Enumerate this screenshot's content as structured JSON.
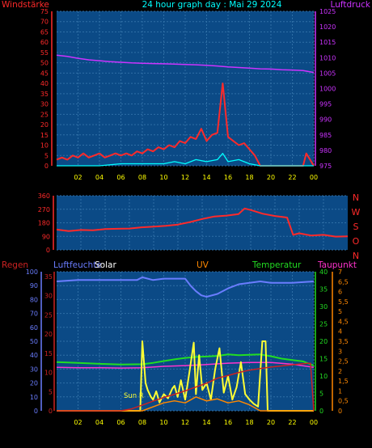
{
  "colors": {
    "background": "#000000",
    "plot_bg": "#0b4a86",
    "grid": "#2f6fa6",
    "wind": "#ff2a2a",
    "gust": "#00ffff",
    "pressure": "#cc33ff",
    "direction": "#ff2a2a",
    "humidity": "#6a7dff",
    "solar": "#ffff33",
    "uv": "#ff8800",
    "temperature": "#22dd22",
    "dewpoint": "#ff33cc",
    "rain": "#cc2222",
    "title": "#00ffff"
  },
  "chart_data": [
    {
      "type": "line",
      "title": "24 hour graph day : Mai 29 2024",
      "ylabel_left": "Windstärke",
      "ylabel_right": "Luftdruck",
      "x_ticks": [
        "02",
        "04",
        "06",
        "08",
        "10",
        "12",
        "14",
        "16",
        "18",
        "20",
        "22",
        "00"
      ],
      "xlim_hours": [
        0,
        24
      ],
      "ylim_left": [
        0,
        75
      ],
      "y_ticks_left": [
        "0",
        "5",
        "10",
        "15",
        "20",
        "25",
        "30",
        "35",
        "40",
        "45",
        "50",
        "55",
        "60",
        "65",
        "70",
        "75"
      ],
      "ylim_right": [
        975,
        1025
      ],
      "y_ticks_right": [
        "975",
        "980",
        "985",
        "990",
        "995",
        "1000",
        "1005",
        "1010",
        "1015",
        "1020",
        "1025"
      ],
      "series": [
        {
          "role": "wind_speed",
          "axis": "left",
          "x": [
            0.0,
            0.5,
            1.0,
            1.5,
            2.0,
            2.5,
            3.0,
            3.5,
            4.0,
            4.5,
            5.0,
            5.5,
            6.0,
            6.5,
            7.0,
            7.5,
            8.0,
            8.5,
            9.0,
            9.5,
            10.0,
            10.5,
            11.0,
            11.5,
            12.0,
            12.5,
            13.0,
            13.5,
            14.0,
            14.5,
            15.0,
            15.5,
            16.0,
            16.5,
            17.0,
            17.5,
            18.0,
            18.5,
            19.0,
            20.0,
            21.0,
            22.0,
            23.0,
            23.3,
            24.0
          ],
          "y": [
            3,
            4,
            3,
            5,
            4,
            6,
            4,
            5,
            6,
            4,
            5,
            6,
            5,
            6,
            5,
            7,
            6,
            8,
            7,
            9,
            8,
            10,
            9,
            12,
            11,
            14,
            13,
            18,
            12,
            15,
            16,
            40,
            14,
            12,
            10,
            11,
            8,
            5,
            0,
            0,
            0,
            0,
            0,
            6,
            0
          ]
        },
        {
          "role": "wind_gust",
          "axis": "left",
          "x": [
            0,
            2,
            4,
            6,
            8,
            10,
            11,
            12,
            13,
            14,
            15,
            15.5,
            16,
            17,
            18,
            19,
            24
          ],
          "y": [
            0,
            0,
            0,
            1,
            1,
            1,
            2,
            1,
            3,
            2,
            3,
            6,
            2,
            3,
            1,
            0,
            0
          ]
        },
        {
          "role": "pressure",
          "axis": "right",
          "x": [
            0,
            1,
            2,
            3,
            4,
            5,
            6,
            7,
            8,
            9,
            10,
            11,
            12,
            13,
            14,
            15,
            16,
            17,
            18,
            19,
            20,
            21,
            22,
            23,
            24
          ],
          "y": [
            1010.8,
            1010.4,
            1009.8,
            1009.3,
            1009.0,
            1008.7,
            1008.5,
            1008.3,
            1008.2,
            1008.1,
            1008.0,
            1007.9,
            1007.8,
            1007.7,
            1007.5,
            1007.3,
            1007.0,
            1006.8,
            1006.6,
            1006.4,
            1006.3,
            1006.1,
            1006.0,
            1005.8,
            1005.2
          ]
        }
      ]
    },
    {
      "type": "line",
      "ylabel_right": [
        "N",
        "W",
        "S",
        "O",
        "N"
      ],
      "x_ticks": [],
      "xlim_hours": [
        0,
        24
      ],
      "ylim_left": [
        0,
        360
      ],
      "y_ticks_left": [
        "0",
        "90",
        "180",
        "270",
        "360"
      ],
      "series": [
        {
          "role": "wind_direction",
          "x": [
            0,
            1,
            2,
            3,
            4,
            5,
            6,
            7,
            8,
            9,
            10,
            11,
            12,
            13,
            14,
            15,
            15.5,
            16,
            17,
            18,
            19,
            19.5,
            20,
            21,
            22,
            23,
            24
          ],
          "y": [
            135,
            125,
            132,
            130,
            138,
            140,
            142,
            150,
            155,
            160,
            168,
            185,
            205,
            222,
            228,
            238,
            275,
            265,
            240,
            225,
            215,
            100,
            110,
            95,
            100,
            88,
            90
          ]
        }
      ]
    },
    {
      "type": "line",
      "labels": {
        "rain": "Regen",
        "humidity": "Luftfeuchte",
        "solar": "Solar",
        "uv": "UV",
        "temperature": "Temperatur",
        "dewpoint": "Taupunkt",
        "sun": "Sun R"
      },
      "x_ticks": [
        "02",
        "04",
        "06",
        "08",
        "10",
        "12",
        "14",
        "16",
        "18",
        "20",
        "22",
        "00"
      ],
      "xlim_hours": [
        0,
        24
      ],
      "ylim_humidity": [
        0,
        100
      ],
      "y_ticks_humidity": [
        "0",
        "10",
        "20",
        "30",
        "40",
        "50",
        "60",
        "70",
        "80",
        "90",
        "100"
      ],
      "ylim_temperature": [
        0,
        40
      ],
      "y_ticks_temperature": [
        "0",
        "5",
        "10",
        "15",
        "20",
        "25",
        "30",
        "35",
        "40"
      ],
      "ylim_uv": [
        0,
        7
      ],
      "y_ticks_uv": [
        "0",
        "0,5",
        "1",
        "1,5",
        "2",
        "2,5",
        "3",
        "3,5",
        "4",
        "4,5",
        "5",
        "5,5",
        "6",
        "6,5",
        "7"
      ],
      "rain_ticks": [
        "0",
        "5",
        "10",
        "15",
        "20",
        "25",
        "30",
        "35"
      ],
      "series": [
        {
          "role": "humidity",
          "axis": "humidity",
          "x": [
            0,
            2,
            4,
            6,
            7.5,
            8,
            9,
            10,
            11,
            12,
            12.5,
            13,
            13.5,
            14,
            15,
            16,
            17,
            18,
            19,
            20,
            22,
            24
          ],
          "y": [
            93,
            94,
            94,
            94,
            94,
            96,
            94,
            95,
            95,
            95,
            90,
            86,
            83,
            82,
            84,
            88,
            91,
            92,
            93,
            92,
            92,
            93
          ]
        },
        {
          "role": "temperature",
          "axis": "temperature",
          "x": [
            0,
            2,
            4,
            6,
            8,
            9,
            10,
            11,
            12,
            13,
            14,
            15,
            16,
            17,
            18,
            19,
            20,
            21,
            22,
            23,
            24
          ],
          "y": [
            14.0,
            13.8,
            13.5,
            13.3,
            13.4,
            13.8,
            14.3,
            14.8,
            15.2,
            15.5,
            15.6,
            15.8,
            16.2,
            16.0,
            16.1,
            16.2,
            15.7,
            15.0,
            14.6,
            14.2,
            13.0
          ]
        },
        {
          "role": "dewpoint",
          "axis": "temperature",
          "x": [
            0,
            2,
            4,
            6,
            8,
            10,
            12,
            14,
            16,
            18,
            20,
            22,
            24
          ],
          "y": [
            12.5,
            12.4,
            12.4,
            12.3,
            12.4,
            12.8,
            13.0,
            13.3,
            13.7,
            13.9,
            13.9,
            13.4,
            12.5
          ]
        },
        {
          "role": "solar",
          "axis": "humidity",
          "x": [
            0,
            7.8,
            8.0,
            8.3,
            8.5,
            8.8,
            9.0,
            9.3,
            9.6,
            10.0,
            10.4,
            10.8,
            11.0,
            11.3,
            11.6,
            12.0,
            12.4,
            12.8,
            13.0,
            13.3,
            13.6,
            14.0,
            14.4,
            14.8,
            15.2,
            15.6,
            16.0,
            16.4,
            16.8,
            17.2,
            17.6,
            18.0,
            18.4,
            18.8,
            19.2,
            19.5,
            19.7,
            24
          ],
          "y": [
            0,
            0,
            50,
            20,
            15,
            10,
            8,
            14,
            6,
            12,
            9,
            16,
            18,
            10,
            22,
            8,
            28,
            49,
            12,
            40,
            15,
            20,
            8,
            30,
            45,
            13,
            25,
            8,
            17,
            35,
            12,
            8,
            5,
            3,
            50,
            50,
            0,
            0
          ]
        },
        {
          "role": "uv",
          "axis": "uv",
          "x": [
            0,
            8,
            9,
            10,
            11,
            12,
            13,
            14,
            15,
            16,
            17,
            18,
            19,
            24
          ],
          "y": [
            0,
            0,
            0.2,
            0.4,
            0.5,
            0.4,
            0.7,
            0.5,
            0.6,
            0.4,
            0.5,
            0.3,
            0,
            0
          ]
        },
        {
          "role": "rain",
          "axis": "rain",
          "x": [
            0,
            6,
            7,
            8,
            9,
            10,
            11,
            12,
            13,
            14,
            15,
            16,
            17,
            18,
            19,
            20,
            21,
            22,
            23,
            23.7,
            24
          ],
          "y": [
            0,
            0,
            0.5,
            1.5,
            2.5,
            3.5,
            4.3,
            5.2,
            6.2,
            7.2,
            8.5,
            9.2,
            10.0,
            10.6,
            11.0,
            11.4,
            11.7,
            12.0,
            12.3,
            12.4,
            0
          ]
        }
      ]
    }
  ]
}
